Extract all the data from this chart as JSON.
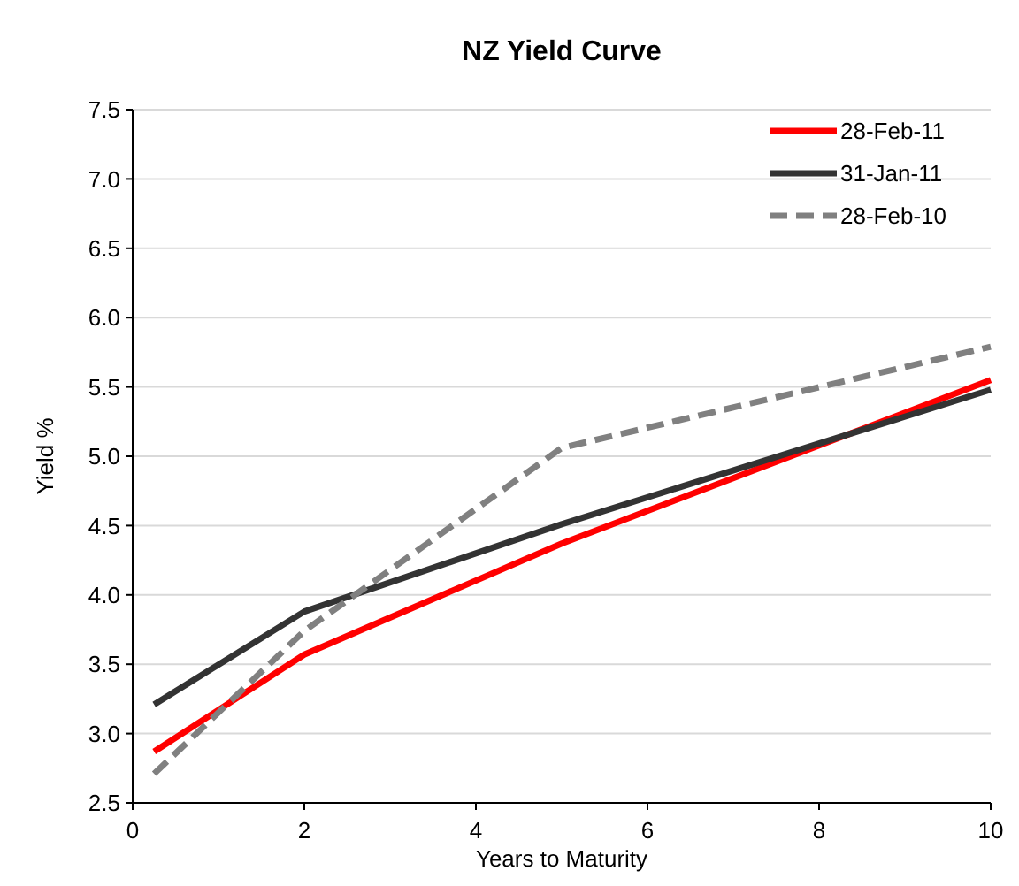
{
  "chart_data": {
    "type": "line",
    "title": "NZ Yield Curve",
    "xlabel": "Years to Maturity",
    "ylabel": "Yield %",
    "x": [
      0.25,
      2,
      5,
      10
    ],
    "series": [
      {
        "name": "28-Feb-11",
        "color": "#ff0000",
        "values": [
          2.87,
          3.57,
          4.37,
          5.55
        ]
      },
      {
        "name": "31-Jan-11",
        "color": "#333333",
        "values": [
          3.21,
          3.88,
          4.51,
          5.48
        ]
      },
      {
        "name": "28-Feb-10",
        "color": "#808080",
        "values": [
          2.71,
          3.74,
          5.06,
          5.79
        ],
        "line_style": "dashed"
      }
    ],
    "xlim": [
      0,
      10
    ],
    "xticks": [
      0,
      2,
      4,
      6,
      8,
      10
    ],
    "ylim": [
      2.5,
      7.5
    ],
    "yticks": [
      {
        "value": 2.5,
        "label": "2.5"
      },
      {
        "value": 3,
        "label": "3.0"
      },
      {
        "value": 3.5,
        "label": "3.5"
      },
      {
        "value": 4,
        "label": "4.0"
      },
      {
        "value": 4.5,
        "label": "4.5"
      },
      {
        "value": 5,
        "label": "5.0"
      },
      {
        "value": 5.5,
        "label": "5.5"
      },
      {
        "value": 6,
        "label": "6.0"
      },
      {
        "value": 6.5,
        "label": "6.5"
      },
      {
        "value": 7,
        "label": "7.0"
      },
      {
        "value": 7.5,
        "label": "7.5"
      }
    ],
    "grid": "y",
    "legend": "top right"
  }
}
